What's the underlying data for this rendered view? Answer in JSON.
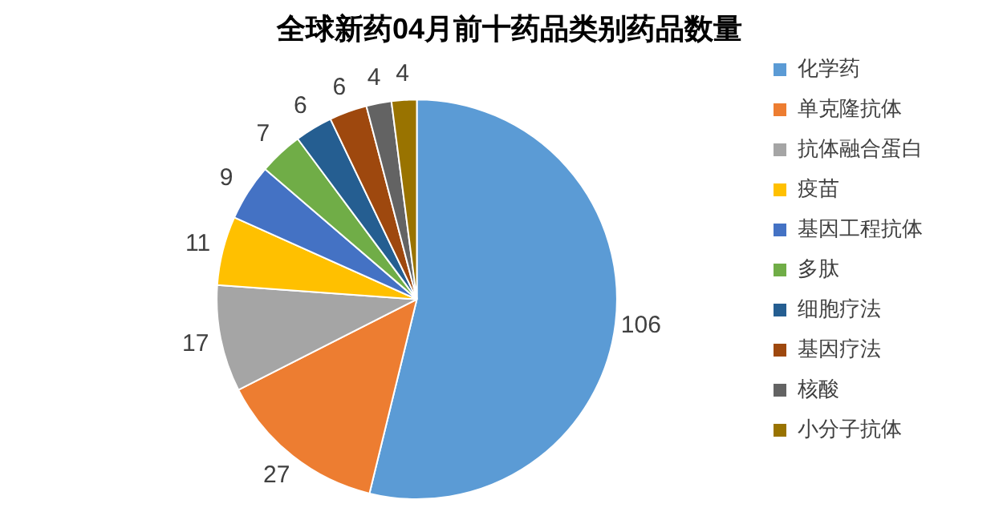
{
  "chart_data": {
    "type": "pie",
    "title": "全球新药04月前十药品类别药品数量",
    "categories": [
      "化学药",
      "单克隆抗体",
      "抗体融合蛋白",
      "疫苗",
      "基因工程抗体",
      "多肽",
      "细胞疗法",
      "基因疗法",
      "核酸",
      "小分子抗体"
    ],
    "values": [
      106,
      27,
      17,
      11,
      9,
      7,
      6,
      6,
      4,
      4
    ],
    "colors": [
      "#5b9bd5",
      "#ed7d31",
      "#a5a5a5",
      "#ffc000",
      "#4472c4",
      "#70ad47",
      "#255e91",
      "#9e480e",
      "#636363",
      "#997300"
    ],
    "legend": "right",
    "data_labels": true
  }
}
